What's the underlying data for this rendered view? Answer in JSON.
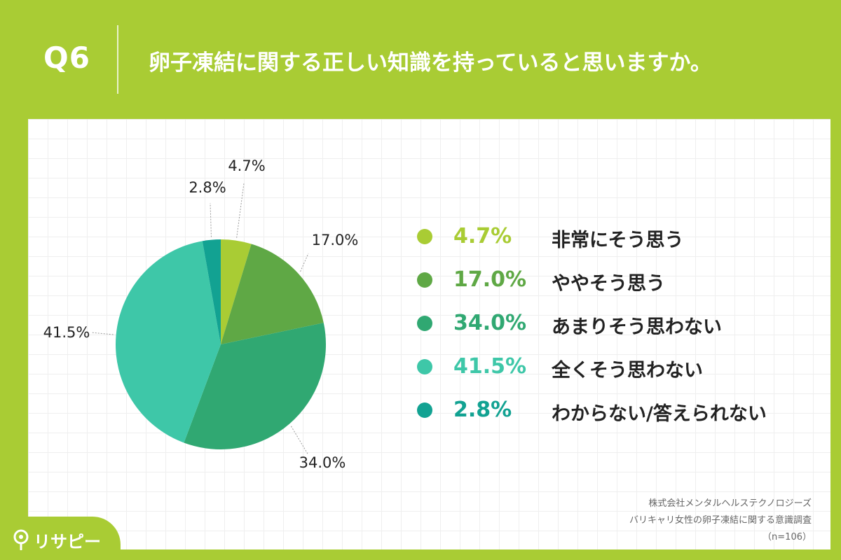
{
  "header": {
    "question_number": "Q6",
    "question": "卵子凍結に関する正しい知識を持っていると思いますか。"
  },
  "chart_data": {
    "type": "pie",
    "categories": [
      "非常にそう思う",
      "ややそう思う",
      "あまりそう思わない",
      "全くそう思わない",
      "わからない/答えられない"
    ],
    "values": [
      4.7,
      17.0,
      34.0,
      41.5,
      2.8
    ],
    "labels": [
      "4.7%",
      "17.0%",
      "34.0%",
      "41.5%",
      "2.8%"
    ],
    "colors": [
      "#a9cc34",
      "#5fa845",
      "#30a872",
      "#3ec7a8",
      "#12a292"
    ],
    "legend_position": "right",
    "start": "12 o'clock, clockwise"
  },
  "legend": [
    {
      "pct": "4.7%",
      "label": "非常にそう思う",
      "color": "#a9cc34"
    },
    {
      "pct": "17.0%",
      "label": "ややそう思う",
      "color": "#5fa845"
    },
    {
      "pct": "34.0%",
      "label": "あまりそう思わない",
      "color": "#30a872"
    },
    {
      "pct": "41.5%",
      "label": "全くそう思わない",
      "color": "#3ec7a8"
    },
    {
      "pct": "2.8%",
      "label": "わからない/答えられない",
      "color": "#12a292"
    }
  ],
  "source": {
    "line1": "株式会社メンタルヘルステクノロジーズ",
    "line2": "バリキャリ女性の卵子凍結に関する意識調査",
    "line3": "（n=106）"
  },
  "logo": {
    "text": "リサピー",
    "icon": "map-pin-icon"
  }
}
